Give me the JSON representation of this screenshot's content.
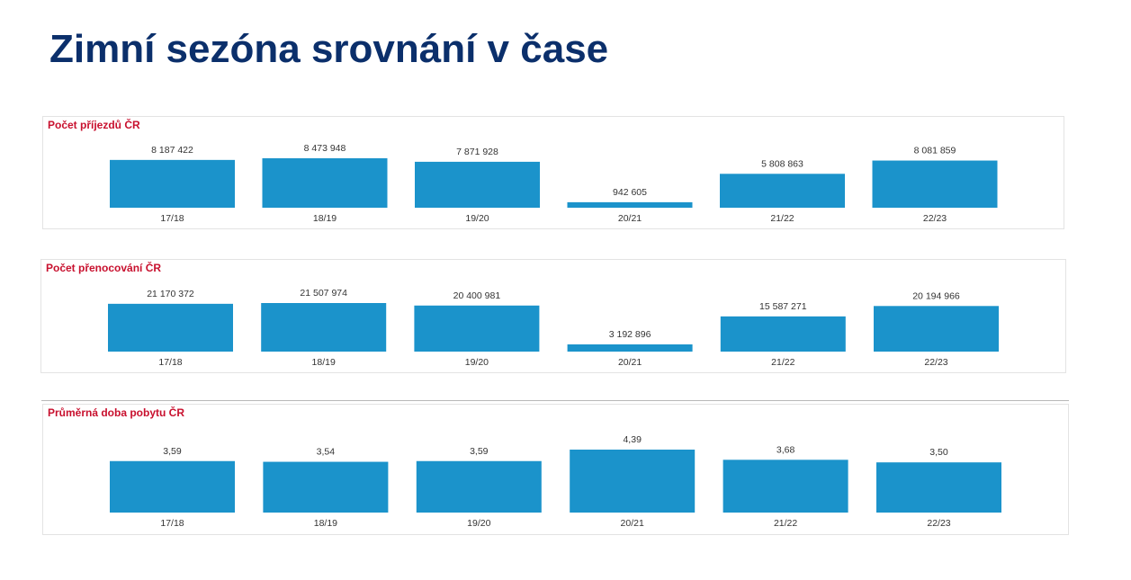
{
  "title": "Zimní sezóna srovnání v čase",
  "colors": {
    "title": "#0b2f6b",
    "panel_title": "#c8102e",
    "bar": "#1b93cb",
    "text": "#333333"
  },
  "chart_data": [
    {
      "type": "bar",
      "title": "Počet příjezdů ČR",
      "categories": [
        "17/18",
        "18/19",
        "19/20",
        "20/21",
        "21/22",
        "22/23"
      ],
      "values": [
        8187422,
        8473948,
        7871928,
        942605,
        5808863,
        8081859
      ],
      "value_labels": [
        "8 187 422",
        "8 473 948",
        "7 871 928",
        "942 605",
        "5 808 863",
        "8 081 859"
      ],
      "xlabel": "",
      "ylabel": "",
      "ylim": [
        0,
        8473948
      ],
      "grid": false,
      "legend": "none"
    },
    {
      "type": "bar",
      "title": "Počet přenocování ČR",
      "categories": [
        "17/18",
        "18/19",
        "19/20",
        "20/21",
        "21/22",
        "22/23"
      ],
      "values": [
        21170372,
        21507974,
        20400981,
        3192896,
        15587271,
        20194966
      ],
      "value_labels": [
        "21 170 372",
        "21 507 974",
        "20 400 981",
        "3 192 896",
        "15 587 271",
        "20 194 966"
      ],
      "xlabel": "",
      "ylabel": "",
      "ylim": [
        0,
        21507974
      ],
      "grid": false,
      "legend": "none"
    },
    {
      "type": "bar",
      "title": "Průměrná doba pobytu ČR",
      "categories": [
        "17/18",
        "18/19",
        "19/20",
        "20/21",
        "21/22",
        "22/23"
      ],
      "values": [
        3.59,
        3.54,
        3.59,
        4.39,
        3.68,
        3.5
      ],
      "value_labels": [
        "3,59",
        "3,54",
        "3,59",
        "4,39",
        "3,68",
        "3,50"
      ],
      "xlabel": "",
      "ylabel": "",
      "ylim": [
        0,
        4.39
      ],
      "grid": false,
      "legend": "none"
    }
  ]
}
